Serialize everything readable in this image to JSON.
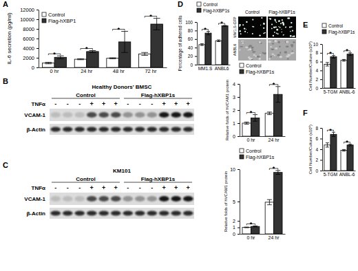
{
  "panel_labels": [
    "A",
    "B",
    "C",
    "D",
    "E",
    "F"
  ],
  "chart_data": [
    {
      "type": "bar",
      "y_label": "IL-6 secretion (pg/ml)",
      "categories": [
        "0 hr",
        "24 hr",
        "48 hr",
        "72 hr"
      ],
      "series": [
        {
          "name": "Control",
          "color": "#ffffff",
          "values": [
            900,
            1700,
            1900,
            2800
          ],
          "errors": [
            150,
            100,
            100,
            300
          ]
        },
        {
          "name": "Flag-hXBP1",
          "color": "#333333",
          "values": [
            2100,
            3300,
            5300,
            9000
          ],
          "errors": [
            300,
            200,
            2200,
            1200
          ]
        }
      ],
      "ylim": [
        0,
        12000
      ],
      "yticks": [
        0,
        2000,
        4000,
        6000,
        8000,
        10000,
        12000
      ],
      "legend": "upper left",
      "annotations": [
        "*",
        "*",
        "*",
        "*"
      ]
    },
    {
      "type": "bar",
      "y_label": "Relative folds of hVCAM1 protein",
      "categories": [
        "0 hr",
        "24 hr"
      ],
      "series": [
        {
          "name": "Control",
          "color": "#ffffff",
          "values": [
            1.0,
            1.75
          ],
          "errors": [
            0.08,
            0.1
          ]
        },
        {
          "name": "Flag-hXBP1s",
          "color": "#333333",
          "values": [
            1.4,
            3.2
          ],
          "errors": [
            0.25,
            0.6
          ]
        }
      ],
      "ylim": [
        0,
        4
      ],
      "yticks": [
        0,
        1,
        2,
        3,
        4
      ],
      "legend": "top",
      "annotations": [
        "*",
        "*"
      ]
    },
    {
      "type": "bar",
      "y_label": "Relative folds of hVCAM1 protein",
      "categories": [
        "0 hr",
        "24 hr"
      ],
      "series": [
        {
          "name": "Control",
          "color": "#ffffff",
          "values": [
            1.0,
            4.9
          ],
          "errors": [
            0.05,
            0.4
          ]
        },
        {
          "name": "Flag-hXBP1s",
          "color": "#333333",
          "values": [
            1.15,
            9.5
          ],
          "errors": [
            0.08,
            0.3
          ]
        }
      ],
      "ylim": [
        0,
        10
      ],
      "yticks": [
        0,
        1,
        2,
        5,
        10
      ],
      "legend": "top",
      "annotations": [
        "*",
        "*"
      ]
    },
    {
      "type": "bar",
      "y_label": "Percentage of adhered cells",
      "categories": [
        "MM1.S",
        "ANBL6"
      ],
      "series": [
        {
          "name": "Control",
          "color": "#ffffff",
          "values": [
            47,
            56
          ],
          "errors": [
            2,
            2
          ]
        },
        {
          "name": "Flag-hXBP1s",
          "color": "#333333",
          "values": [
            74,
            91
          ],
          "errors": [
            4,
            1
          ]
        }
      ],
      "ylim": [
        0,
        100
      ],
      "yticks": [
        0,
        20,
        40,
        60,
        80,
        100
      ],
      "legend": "top",
      "annotations": [
        "*",
        "*"
      ]
    },
    {
      "type": "bar",
      "y_label": "Cell Number/Culture (x10⁶)",
      "categories": [
        "5-TGM",
        "ANBL-6"
      ],
      "series": [
        {
          "name": "Control",
          "color": "#ffffff",
          "values": [
            5.4,
            6.3
          ],
          "errors": [
            0.4,
            0.2
          ]
        },
        {
          "name": "Flag-hXBP1s",
          "color": "#333333",
          "values": [
            7.1,
            7.7
          ],
          "errors": [
            0.3,
            0.3
          ]
        }
      ],
      "ylim": [
        0,
        10
      ],
      "yticks": [
        0,
        2,
        4,
        6,
        8,
        10
      ],
      "legend": "top",
      "annotations": [
        "*",
        "*"
      ]
    },
    {
      "type": "bar",
      "y_label": "Cell Number/Culture (x10⁶)",
      "categories": [
        "5-TGM",
        "ANBL-6"
      ],
      "series": [
        {
          "color": "#ffffff",
          "values": [
            4.8,
            3.8
          ],
          "errors": [
            0.4,
            0.15
          ]
        },
        {
          "color": "#333333",
          "values": [
            6.8,
            4.8
          ],
          "errors": [
            0.4,
            0.15
          ]
        }
      ],
      "ylim": [
        0,
        8
      ],
      "yticks": [
        0,
        2,
        4,
        6,
        8
      ],
      "annotations": [
        "*",
        "*"
      ]
    }
  ],
  "blots": [
    {
      "title": "Healthy Donors' BMSC",
      "groups": [
        "Control",
        "Flag-hXBP1s"
      ],
      "treatment_label": "TNFα",
      "treatment": [
        "-",
        "-",
        "-",
        "+",
        "+",
        "+",
        "-",
        "-",
        "-",
        "+",
        "+",
        "+"
      ],
      "rows": [
        "VCAM-1",
        "β-Actin"
      ]
    },
    {
      "title": "KM101",
      "groups": [
        "Control",
        "Flag-hXBP1s"
      ],
      "treatment_label": "TNFα",
      "treatment": [
        "-",
        "-",
        "-",
        "+",
        "+",
        "+",
        "-",
        "-",
        "-",
        "+",
        "+",
        "+"
      ],
      "rows": [
        "VCAM-1",
        "β-Actin"
      ]
    }
  ],
  "images": {
    "columns": [
      "Control",
      "Flag-hXBP1s"
    ],
    "rows": [
      "MM1.S-GFP",
      "ANBL6"
    ]
  }
}
